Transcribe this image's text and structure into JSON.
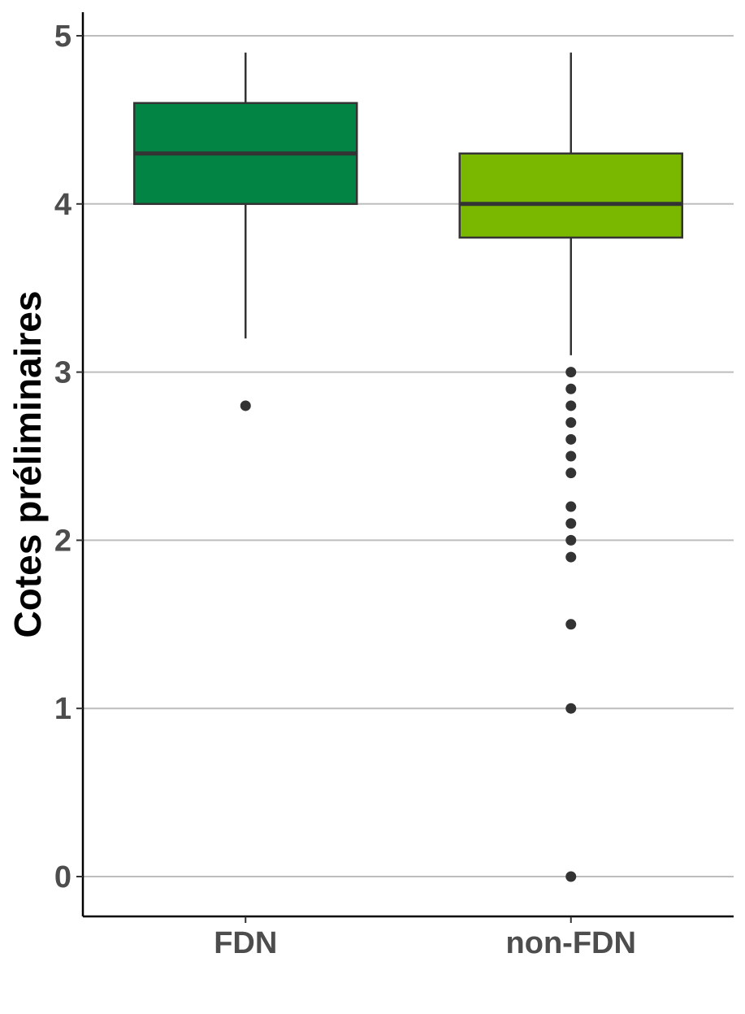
{
  "chart_data": {
    "type": "boxplot",
    "title": "",
    "xlabel": "",
    "ylabel": "Cotes préliminaires",
    "ylim": [
      0,
      5
    ],
    "yticks": [
      "0",
      "1",
      "2",
      "3",
      "4",
      "5"
    ],
    "grid": "horizontal major",
    "legend": "none",
    "categories": [
      "FDN",
      "non-FDN"
    ],
    "boxes": [
      {
        "category": "FDN",
        "color": "#018444",
        "whisker_low": 3.2,
        "q1": 4.0,
        "median": 4.3,
        "q3": 4.6,
        "whisker_high": 4.9,
        "outliers": [
          2.8
        ]
      },
      {
        "category": "non-FDN",
        "color": "#7ab800",
        "whisker_low": 3.1,
        "q1": 3.8,
        "median": 4.0,
        "q3": 4.3,
        "whisker_high": 4.9,
        "outliers": [
          3.0,
          2.9,
          2.8,
          2.7,
          2.6,
          2.5,
          2.4,
          2.2,
          2.1,
          2.0,
          1.9,
          1.5,
          1.0,
          0.0
        ]
      }
    ]
  }
}
